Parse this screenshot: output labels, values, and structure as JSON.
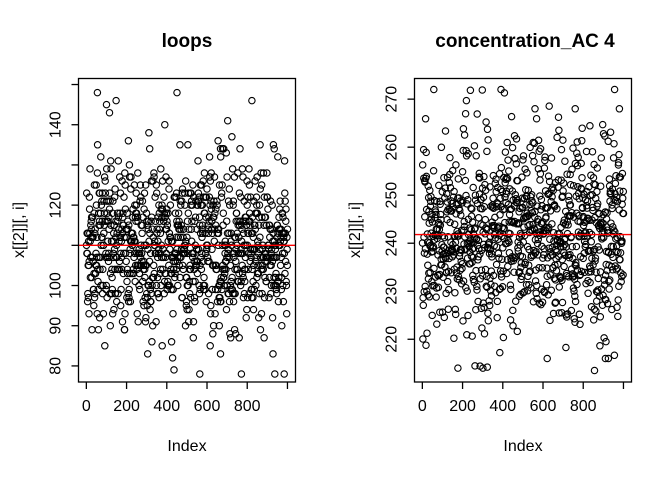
{
  "page": {
    "background_color": "#ffffff",
    "foreground_color": "#000000"
  },
  "chart_data": [
    {
      "type": "scatter",
      "title": "loops",
      "xlabel": "Index",
      "ylabel": "x[[2]][, i]",
      "grid": false,
      "legend": null,
      "xlim": [
        -39,
        1040
      ],
      "ylim": [
        76,
        151.5
      ],
      "x_ticks": [
        {
          "value": 0,
          "label": "0"
        },
        {
          "value": 200,
          "label": "200"
        },
        {
          "value": 400,
          "label": "400"
        },
        {
          "value": 600,
          "label": "600"
        },
        {
          "value": 800,
          "label": "800"
        },
        {
          "value": 1000,
          "label": ""
        }
      ],
      "y_ticks": [
        {
          "value": 80,
          "label": "80"
        },
        {
          "value": 90,
          "label": "90"
        },
        {
          "value": 100,
          "label": "100"
        },
        {
          "value": 110,
          "label": ""
        },
        {
          "value": 120,
          "label": "120"
        },
        {
          "value": 130,
          "label": ""
        },
        {
          "value": 140,
          "label": "140"
        },
        {
          "value": 150,
          "label": ""
        }
      ],
      "points": {
        "n": 1000,
        "x_values": "index 1..1000",
        "distribution": "normal",
        "mean": 110,
        "sd": 10.4,
        "min": 78,
        "max": 148,
        "integer_values": true,
        "seed": 20240
      },
      "outliers": [
        [
          55,
          148
        ],
        [
          451,
          148
        ],
        [
          823,
          146
        ],
        [
          100,
          145
        ],
        [
          115,
          143
        ],
        [
          564,
          78
        ],
        [
          771,
          78
        ],
        [
          984,
          78
        ],
        [
          429,
          82
        ],
        [
          667,
          83
        ]
      ],
      "mean_line": {
        "value": 110,
        "color": "#ff0000"
      },
      "point_style": {
        "marker": "open-circle",
        "color": "#000000"
      }
    },
    {
      "type": "scatter",
      "title": "concentration_AC 4",
      "xlabel": "Index",
      "ylabel": "x[[2]][, i]",
      "grid": false,
      "legend": null,
      "xlim": [
        -39,
        1040
      ],
      "ylim": [
        211.1,
        274.3
      ],
      "x_ticks": [
        {
          "value": 0,
          "label": "0"
        },
        {
          "value": 200,
          "label": "200"
        },
        {
          "value": 400,
          "label": "400"
        },
        {
          "value": 600,
          "label": "600"
        },
        {
          "value": 800,
          "label": "800"
        },
        {
          "value": 1000,
          "label": ""
        }
      ],
      "y_ticks": [
        {
          "value": 220,
          "label": "220"
        },
        {
          "value": 230,
          "label": "230"
        },
        {
          "value": 240,
          "label": "240"
        },
        {
          "value": 250,
          "label": "250"
        },
        {
          "value": 260,
          "label": "260"
        },
        {
          "value": 270,
          "label": "270"
        }
      ],
      "points": {
        "n": 1000,
        "x_values": "index 1..1000",
        "distribution": "normal",
        "mean": 241.8,
        "sd": 10,
        "min": 213.5,
        "max": 272,
        "integer_values": false,
        "seed": 77321
      },
      "outliers": [
        [
          391,
          272
        ],
        [
          560,
          268
        ],
        [
          760,
          268
        ],
        [
          980,
          268
        ],
        [
          177,
          214
        ],
        [
          301,
          214
        ],
        [
          621,
          216
        ],
        [
          910,
          216
        ],
        [
          925,
          216
        ]
      ],
      "mean_line": {
        "value": 241.8,
        "color": "#ff0000"
      },
      "point_style": {
        "marker": "open-circle",
        "color": "#000000"
      }
    }
  ]
}
